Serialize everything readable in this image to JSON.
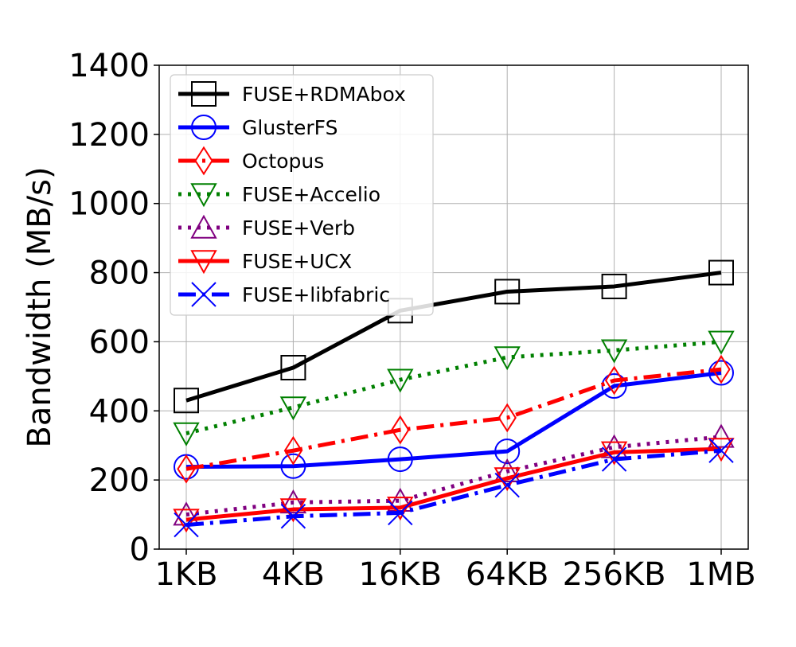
{
  "chart_data": {
    "type": "line",
    "title": "",
    "xlabel": "",
    "ylabel": "Bandwidth (MB/s)",
    "categories": [
      "1KB",
      "4KB",
      "16KB",
      "64KB",
      "256KB",
      "1MB"
    ],
    "ylim": [
      0,
      1400
    ],
    "yticks": [
      0,
      200,
      400,
      600,
      800,
      1000,
      1200,
      1400
    ],
    "grid": true,
    "legend_position": "top-left",
    "series": [
      {
        "name": "FUSE+RDMAbox",
        "values": [
          430,
          525,
          690,
          745,
          760,
          800
        ],
        "color": "#000000",
        "marker": "square",
        "line_style": "solid"
      },
      {
        "name": "GlusterFS",
        "values": [
          238,
          240,
          260,
          283,
          472,
          510
        ],
        "color": "#0000ff",
        "marker": "circle",
        "line_style": "solid"
      },
      {
        "name": "Octopus",
        "values": [
          232,
          285,
          345,
          380,
          488,
          520
        ],
        "color": "#ff0000",
        "marker": "diamond",
        "line_style": "dashdot"
      },
      {
        "name": "FUSE+Accelio",
        "values": [
          335,
          410,
          490,
          555,
          575,
          600
        ],
        "color": "#008000",
        "marker": "triangle-down",
        "line_style": "dotted"
      },
      {
        "name": "FUSE+Verb",
        "values": [
          100,
          135,
          140,
          225,
          295,
          325
        ],
        "color": "#800080",
        "marker": "triangle-up",
        "line_style": "dotted"
      },
      {
        "name": "FUSE+UCX",
        "values": [
          85,
          115,
          120,
          205,
          280,
          290
        ],
        "color": "#ff0000",
        "marker": "triangle-down",
        "line_style": "solid"
      },
      {
        "name": "FUSE+libfabric",
        "values": [
          70,
          95,
          105,
          185,
          260,
          285
        ],
        "color": "#0000ff",
        "marker": "x",
        "line_style": "dashdot"
      }
    ]
  }
}
